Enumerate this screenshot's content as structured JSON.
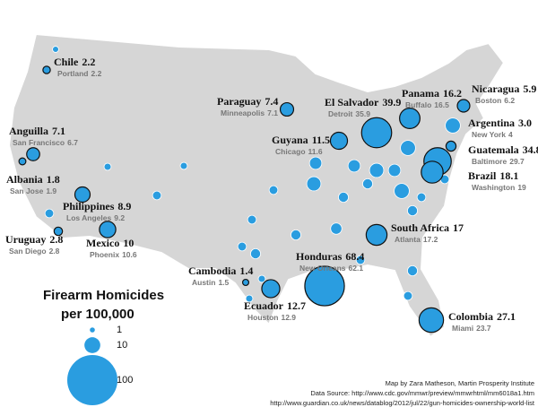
{
  "legend": {
    "title": [
      "Firearm Homicides",
      "per 100,000"
    ],
    "sizes": [
      1,
      10,
      100
    ]
  },
  "bubble_color": "#2a9de0",
  "map_color": "#d6d6d6",
  "cities": [
    {
      "country": "Chile",
      "country_rate": 2.2,
      "city": "Portland",
      "city_rate": 2.2
    },
    {
      "country": "Paraguay",
      "country_rate": 7.4,
      "city": "Minneapolis",
      "city_rate": 7.1
    },
    {
      "country": "El Salvador",
      "country_rate": 39.9,
      "city": "Detroit",
      "city_rate": 35.9
    },
    {
      "country": "Panama",
      "country_rate": 16.2,
      "city": "Buffalo",
      "city_rate": 16.5
    },
    {
      "country": "Nicaragua",
      "country_rate": 5.9,
      "city": "Boston",
      "city_rate": 6.2
    },
    {
      "country": "Anguilla",
      "country_rate": 7.1,
      "city": "San Francisco",
      "city_rate": 6.7
    },
    {
      "country": "Guyana",
      "country_rate": 11.5,
      "city": "Chicago",
      "city_rate": 11.6
    },
    {
      "country": "Argentina",
      "country_rate": "3.0",
      "city": "New York",
      "city_rate": 4
    },
    {
      "country": "Guatemala",
      "country_rate": 34.8,
      "city": "Baltimore",
      "city_rate": 29.7
    },
    {
      "country": "Brazil",
      "country_rate": 18.1,
      "city": "Washington",
      "city_rate": 19
    },
    {
      "country": "Albania",
      "country_rate": 1.8,
      "city": "San Jose",
      "city_rate": 1.9
    },
    {
      "country": "Philippines",
      "country_rate": 8.9,
      "city": "Los Angeles",
      "city_rate": 9.2
    },
    {
      "country": "Uruguay",
      "country_rate": 2.8,
      "city": "San Diego",
      "city_rate": 2.8
    },
    {
      "country": "Mexico",
      "country_rate": 10,
      "city": "Phoenix",
      "city_rate": 10.6
    },
    {
      "country": "South Africa",
      "country_rate": 17,
      "city": "Atlanta",
      "city_rate": 17.2
    },
    {
      "country": "Honduras",
      "country_rate": 68.4,
      "city": "New Orleans",
      "city_rate": 62.1
    },
    {
      "country": "Cambodia",
      "country_rate": 1.4,
      "city": "Austin",
      "city_rate": 1.5
    },
    {
      "country": "Ecuador",
      "country_rate": 12.7,
      "city": "Houston",
      "city_rate": 12.9
    },
    {
      "country": "Colombia",
      "country_rate": 27.1,
      "city": "Miami",
      "city_rate": 23.7
    }
  ],
  "other_values": [
    1.5,
    2,
    3,
    3,
    2,
    3,
    4,
    3,
    8,
    6,
    6,
    4,
    8,
    6,
    9,
    9,
    4,
    3,
    9,
    3,
    4,
    5,
    4,
    3,
    4,
    3,
    2,
    2,
    3
  ],
  "credits": [
    "Map by Zara Matheson, Martin Prosperity Institute",
    "Data Source: http://www.cdc.gov/mmwr/preview/mmwrhtml/mm6018a1.htm",
    "http://www.guardian.co.uk/news/datablog/2012/jul/22/gun-homicides-ownership-world-list"
  ]
}
